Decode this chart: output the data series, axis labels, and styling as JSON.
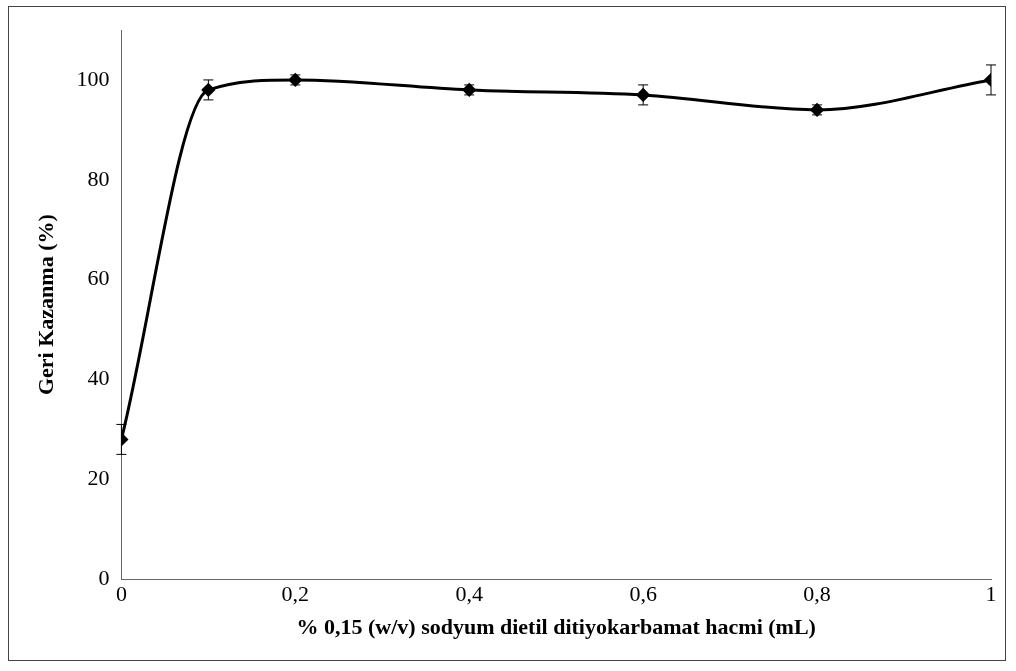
{
  "chart_data": {
    "type": "line",
    "xlabel": "% 0,15 (w/v) sodyum dietil ditiyokarbamat hacmi (mL)",
    "ylabel": "Geri Kazanma (%)",
    "x": [
      0,
      0.1,
      0.2,
      0.4,
      0.6,
      0.8,
      1
    ],
    "series": [
      {
        "color": "#000000",
        "values": [
          28,
          98,
          100,
          98,
          97,
          94,
          100
        ],
        "errors": [
          3,
          2,
          1,
          1,
          2,
          1,
          3
        ]
      }
    ],
    "xlim": [
      0,
      1
    ],
    "xticks": [
      0,
      {
        "value": 0.2,
        "label": "0,2"
      },
      {
        "value": 0.4,
        "label": "0,4"
      },
      {
        "value": 0.6,
        "label": "0,6"
      },
      {
        "value": 0.8,
        "label": "0,8"
      },
      1
    ],
    "ylim": [
      0,
      110
    ],
    "yticks": [
      0,
      20,
      40,
      60,
      80,
      100
    ],
    "grid": false,
    "legend": false,
    "marker": "diamond",
    "line_style": "solid"
  }
}
